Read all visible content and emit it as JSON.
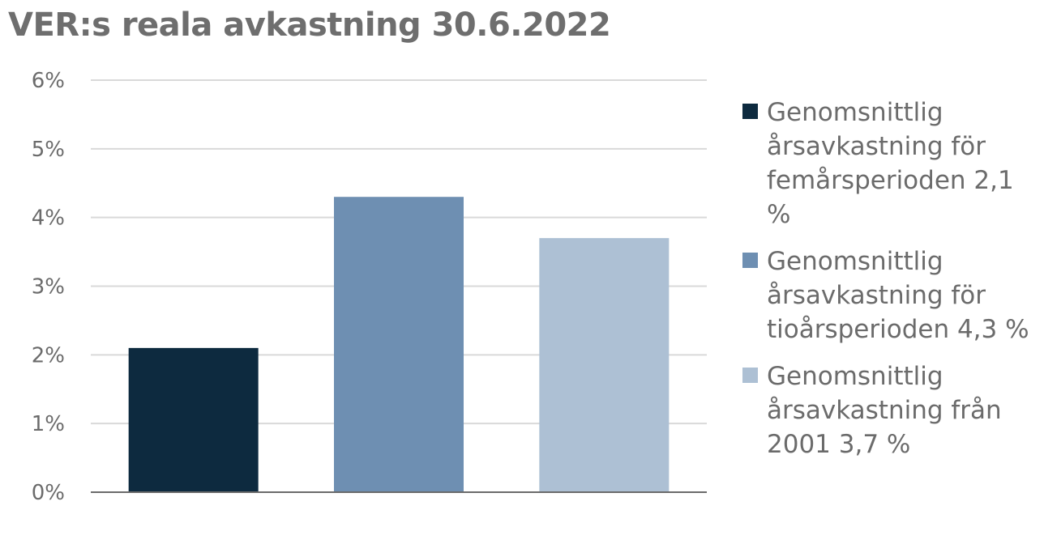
{
  "title": "VER:s reala avkastning 30.6.2022",
  "chart_data": {
    "type": "bar",
    "title": "VER:s reala avkastning 30.6.2022",
    "xlabel": "",
    "ylabel": "",
    "ylim": [
      0,
      6
    ],
    "yticks": [
      "0%",
      "1%",
      "2%",
      "3%",
      "4%",
      "5%",
      "6%"
    ],
    "grid": true,
    "legend_position": "right",
    "series": [
      {
        "name": "Genomsnittlig årsavkastning för femårsperioden 2,1 %",
        "value": 2.1,
        "color": "#0d2a3f"
      },
      {
        "name": "Genomsnittlig årsavkastning för tioårsperioden 4,3 %",
        "value": 4.3,
        "color": "#6e8fb2"
      },
      {
        "name": "Genomsnittlig årsavkastning från 2001 3,7 %",
        "value": 3.7,
        "color": "#adc0d4"
      }
    ]
  }
}
